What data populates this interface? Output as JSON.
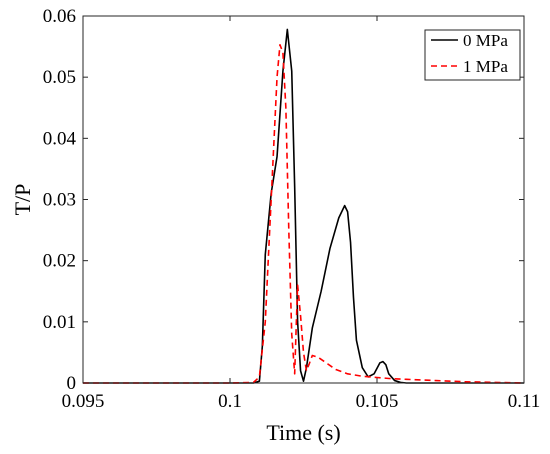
{
  "chart_data": {
    "type": "line",
    "xlabel": "Time (s)",
    "ylabel": "T/P",
    "xlim": [
      0.095,
      0.11
    ],
    "ylim": [
      0,
      0.06
    ],
    "xticks": [
      0.095,
      0.1,
      0.105,
      0.11
    ],
    "xtick_labels": [
      "0.095",
      "0.1",
      "0.105",
      "0.11"
    ],
    "yticks": [
      0,
      0.01,
      0.02,
      0.03,
      0.04,
      0.05,
      0.06
    ],
    "ytick_labels": [
      "0",
      "0.01",
      "0.02",
      "0.03",
      "0.04",
      "0.05",
      "0.06"
    ],
    "grid": false,
    "legend_position": "top-right",
    "series": [
      {
        "name": "0 MPa",
        "color": "#000000",
        "dash": "solid",
        "x": [
          0.095,
          0.1,
          0.1008,
          0.101,
          0.1011,
          0.1012,
          0.1014,
          0.1016,
          0.1018,
          0.10195,
          0.1021,
          0.1022,
          0.1023,
          0.1024,
          0.1025,
          0.1026,
          0.1028,
          0.1031,
          0.1034,
          0.1037,
          0.1039,
          0.104,
          0.1041,
          0.1042,
          0.1043,
          0.1045,
          0.1047,
          0.1049,
          0.1051,
          0.1052,
          0.1053,
          0.1054,
          0.1056,
          0.1058,
          0.106,
          0.107,
          0.11
        ],
        "y": [
          0,
          0,
          0,
          0.0003,
          0.006,
          0.021,
          0.031,
          0.037,
          0.051,
          0.0578,
          0.051,
          0.032,
          0.01,
          0.002,
          0.0003,
          0.0025,
          0.009,
          0.015,
          0.022,
          0.027,
          0.029,
          0.028,
          0.023,
          0.014,
          0.007,
          0.0025,
          0.001,
          0.0015,
          0.0033,
          0.0035,
          0.003,
          0.0015,
          0.0004,
          0.0001,
          0,
          0,
          0
        ]
      },
      {
        "name": "1 MPa",
        "color": "#ff0000",
        "dash": "dashed",
        "x": [
          0.095,
          0.1,
          0.1008,
          0.101,
          0.1012,
          0.1014,
          0.1016,
          0.1017,
          0.1018,
          0.1019,
          0.102,
          0.1021,
          0.1022,
          0.10225,
          0.1023,
          0.1024,
          0.1025,
          0.1026,
          0.1027,
          0.1028,
          0.103,
          0.1033,
          0.1036,
          0.104,
          0.1045,
          0.105,
          0.1055,
          0.106,
          0.107,
          0.108,
          0.11
        ],
        "y": [
          0,
          0,
          0.0001,
          0.001,
          0.01,
          0.03,
          0.05,
          0.0553,
          0.054,
          0.045,
          0.025,
          0.008,
          0.0015,
          0.009,
          0.016,
          0.011,
          0.005,
          0.002,
          0.0032,
          0.0045,
          0.0042,
          0.0032,
          0.0022,
          0.0015,
          0.0011,
          0.0009,
          0.0007,
          0.0006,
          0.0004,
          0.0002,
          0
        ]
      }
    ]
  }
}
